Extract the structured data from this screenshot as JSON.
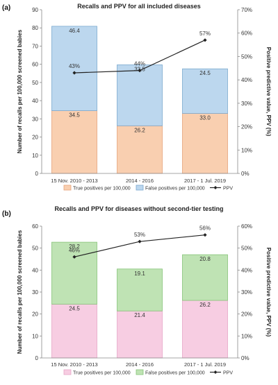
{
  "chart_data": [
    {
      "panel_label": "(a)",
      "type": "bar",
      "title": "Recalls and PPV for all included diseases",
      "categories": [
        "15 Nov. 2010 - 2013",
        "2014 - 2016",
        "2017 - 1 Jul. 2019"
      ],
      "ylabel": "Number of recalls per 100,000 screened babies",
      "y2label": "Positive predictive value, PPV (%)",
      "ylim": [
        0,
        90
      ],
      "yticks": [
        0,
        10,
        20,
        30,
        40,
        50,
        60,
        70,
        80,
        90
      ],
      "y2lim": [
        0,
        70
      ],
      "y2ticks": [
        0,
        10,
        20,
        30,
        40,
        50,
        60,
        70
      ],
      "series": [
        {
          "name": "True positives per 100,000",
          "values": [
            34.5,
            26.2,
            33.0
          ],
          "labels": [
            "34.5",
            "26.2",
            "33.0"
          ],
          "color": "#f9cfb0"
        },
        {
          "name": "False positives per 100,000",
          "values": [
            46.4,
            33.5,
            24.5
          ],
          "labels": [
            "46.4",
            "33.5",
            "24.5"
          ],
          "color": "#bcd7ee"
        }
      ],
      "line": {
        "name": "PPV",
        "values": [
          43,
          44,
          57
        ],
        "labels": [
          "43%",
          "44%",
          "57%"
        ],
        "color": "#222222"
      },
      "legend_position": "bottom",
      "grid": false
    },
    {
      "panel_label": "(b)",
      "type": "bar",
      "title": "Recalls and PPV for diseases without second-tier testing",
      "categories": [
        "15 Nov. 2010 - 2013",
        "2014 - 2016",
        "2017 - 1 Jul. 2019"
      ],
      "ylabel": "Number of recalls per 100,000 screened babies",
      "y2label": "Positive predictive value, PPV (%)",
      "ylim": [
        0,
        60
      ],
      "yticks": [
        0,
        10,
        20,
        30,
        40,
        50,
        60
      ],
      "y2lim": [
        0,
        60
      ],
      "y2ticks": [
        0,
        10,
        20,
        30,
        40,
        50,
        60
      ],
      "series": [
        {
          "name": "True positives per 100,000",
          "values": [
            24.5,
            21.4,
            26.2
          ],
          "labels": [
            "24.5",
            "21.4",
            "26.2"
          ],
          "color": "#f7cde2"
        },
        {
          "name": "False positives per 100,000",
          "values": [
            28.2,
            19.1,
            20.8
          ],
          "labels": [
            "28.2",
            "19.1",
            "20.8"
          ],
          "color": "#bfe3b4"
        }
      ],
      "line": {
        "name": "PPV",
        "values": [
          46,
          53,
          56
        ],
        "labels": [
          "46%",
          "53%",
          "56%"
        ],
        "color": "#222222"
      },
      "legend_position": "bottom",
      "grid": false
    }
  ]
}
